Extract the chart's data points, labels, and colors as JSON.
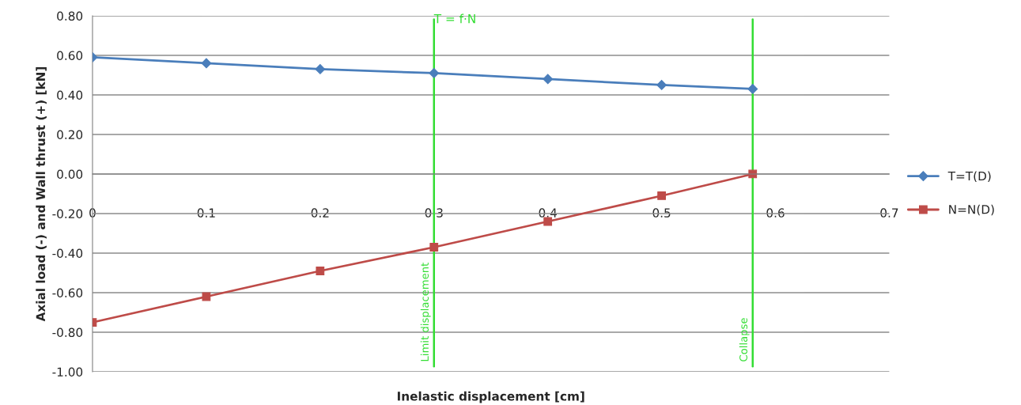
{
  "chart_data": {
    "type": "line",
    "xlabel": "Inelastic displacement [cm]",
    "ylabel": "Axial load (-) and Wall thrust (+) [kN]",
    "series": [
      {
        "name": "T=T(D)",
        "color": "#4a7ebb",
        "marker": "diamond",
        "x": [
          0,
          0.1,
          0.2,
          0.3,
          0.4,
          0.5,
          0.58
        ],
        "values": [
          0.59,
          0.56,
          0.53,
          0.51,
          0.48,
          0.45,
          0.43
        ]
      },
      {
        "name": "N=N(D)",
        "color": "#be4b48",
        "marker": "square",
        "x": [
          0,
          0.1,
          0.2,
          0.3,
          0.4,
          0.5,
          0.58
        ],
        "values": [
          -0.75,
          -0.62,
          -0.49,
          -0.37,
          -0.24,
          -0.11,
          0.0
        ]
      }
    ],
    "xlim": [
      0,
      0.7
    ],
    "xticks": [
      0,
      0.1,
      0.2,
      0.3,
      0.4,
      0.5,
      0.6,
      0.7
    ],
    "ylim": [
      -1.0,
      0.8
    ],
    "yticks": [
      {
        "value": -1.0,
        "label": "-1.00"
      },
      {
        "value": -0.8,
        "label": "-0.80"
      },
      {
        "value": -0.6,
        "label": "-0.60"
      },
      {
        "value": -0.4,
        "label": "-0.40"
      },
      {
        "value": -0.2,
        "label": "-0.20"
      },
      {
        "value": 0.0,
        "label": "0.00"
      },
      {
        "value": 0.2,
        "label": "0.20"
      },
      {
        "value": 0.4,
        "label": "0.40"
      },
      {
        "value": 0.6,
        "label": "0.60"
      },
      {
        "value": 0.8,
        "label": "0.80"
      }
    ],
    "ref_lines": [
      {
        "axis": "x",
        "value": 0.3,
        "label": "Limit displacement",
        "color": "#33dd33"
      },
      {
        "axis": "x",
        "value": 0.58,
        "label": "Collapse",
        "color": "#33dd33"
      }
    ],
    "annotations": [
      {
        "text": "T = f·N",
        "x": 0.3,
        "y": 0.78
      }
    ],
    "grid": "y",
    "legend": "right",
    "line_style": "solid"
  }
}
